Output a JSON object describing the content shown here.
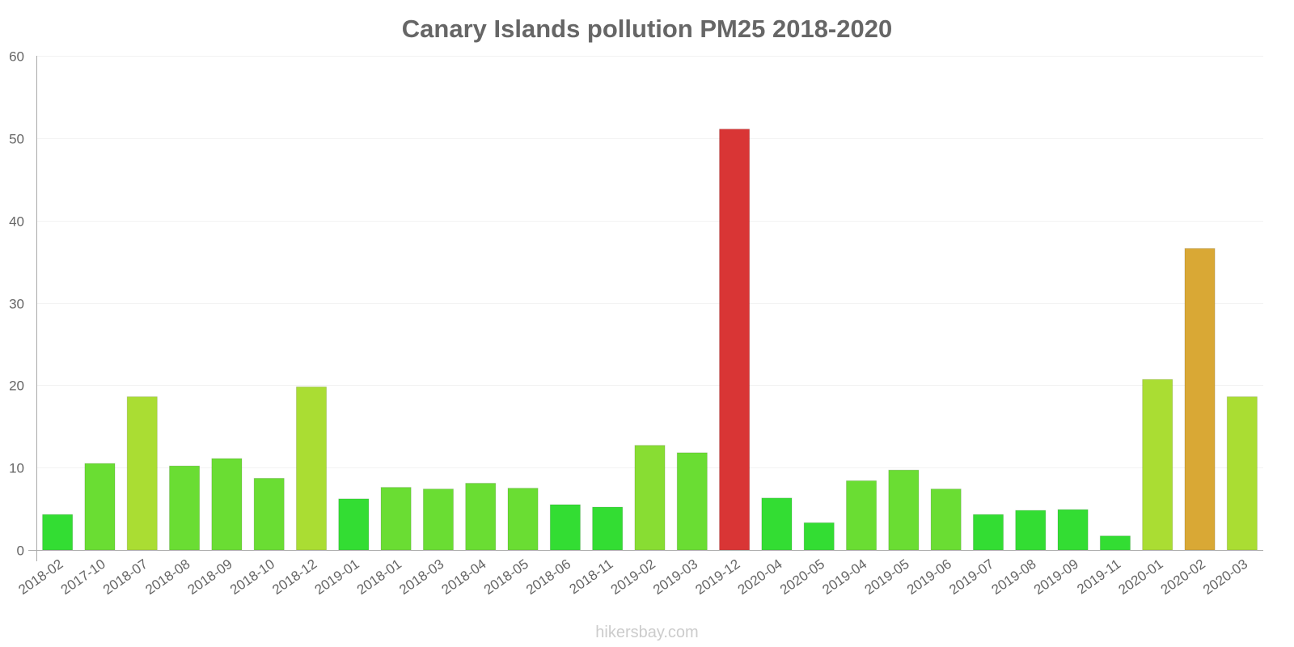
{
  "chart_data": {
    "type": "bar",
    "title": "Canary Islands pollution PM25 2018-2020",
    "xlabel": "",
    "ylabel": "",
    "ylim": [
      0,
      60
    ],
    "yticks": [
      0,
      10,
      20,
      30,
      40,
      50,
      60
    ],
    "grid": true,
    "categories": [
      "2018-02",
      "2017-10",
      "2018-07",
      "2018-08",
      "2018-09",
      "2018-10",
      "2018-12",
      "2019-01",
      "2018-01",
      "2018-03",
      "2018-04",
      "2018-05",
      "2018-06",
      "2018-11",
      "2019-02",
      "2019-03",
      "2019-12",
      "2020-04",
      "2020-05",
      "2019-04",
      "2019-05",
      "2019-06",
      "2019-07",
      "2019-08",
      "2019-09",
      "2019-11",
      "2020-01",
      "2020-02",
      "2020-03"
    ],
    "values": [
      4.3,
      10.5,
      18.6,
      10.2,
      11.1,
      8.7,
      19.8,
      6.2,
      7.6,
      7.4,
      8.1,
      7.5,
      5.5,
      5.2,
      12.7,
      11.8,
      51.1,
      6.3,
      3.3,
      8.4,
      9.7,
      7.4,
      4.3,
      4.8,
      4.9,
      1.7,
      20.7,
      36.6,
      18.6
    ],
    "colors": [
      "#33dd33",
      "#6add33",
      "#aadd33",
      "#6add33",
      "#6add33",
      "#6add33",
      "#aadd33",
      "#33dd33",
      "#6add33",
      "#6add33",
      "#6add33",
      "#6add33",
      "#33dd33",
      "#33dd33",
      "#88dd33",
      "#6add33",
      "#d93535",
      "#33dd33",
      "#33dd33",
      "#6add33",
      "#6add33",
      "#6add33",
      "#33dd33",
      "#33dd33",
      "#33dd33",
      "#33dd33",
      "#aadd33",
      "#d9a835",
      "#aadd33"
    ]
  },
  "credit": "hikersbay.com"
}
